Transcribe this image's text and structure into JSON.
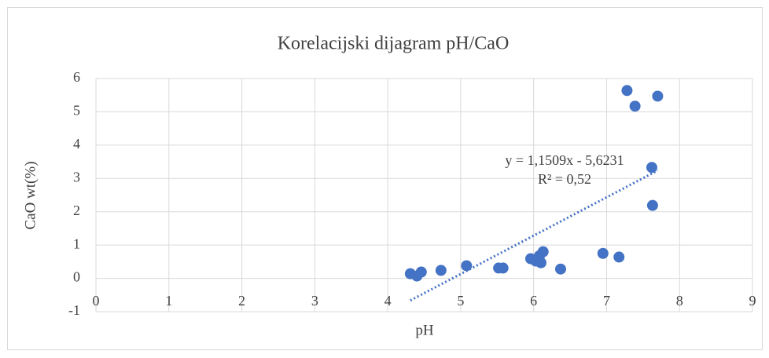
{
  "chart_data": {
    "type": "scatter",
    "title": "Korelacijski dijagram pH/CaO",
    "x_label": "pH",
    "y_label": "CaO wt(%)",
    "series": [
      {
        "name": "CaO",
        "color": "#4472c4",
        "x": [
          4.31,
          4.4,
          4.46,
          4.73,
          5.08,
          5.52,
          5.58,
          5.96,
          6.03,
          6.08,
          6.1,
          6.13,
          6.37,
          6.95,
          7.17,
          7.28,
          7.39,
          7.62,
          7.63,
          7.7
        ],
        "values": [
          0.14,
          0.07,
          0.19,
          0.24,
          0.38,
          0.31,
          0.31,
          0.59,
          0.52,
          0.68,
          0.47,
          0.8,
          0.28,
          0.75,
          0.64,
          5.64,
          5.17,
          3.33,
          2.19,
          5.47
        ]
      }
    ],
    "trendline": {
      "slope": 1.1509,
      "intercept": -5.6231,
      "color": "#4472c4",
      "equation": "y = 1,1509x - 5,6231",
      "r2": "R² = 0,52"
    },
    "xlim": [
      0,
      9
    ],
    "xticks": [
      0,
      1,
      2,
      3,
      4,
      5,
      6,
      7,
      8,
      9
    ],
    "ylim": [
      -1,
      6
    ],
    "yticks": [
      -1,
      0,
      1,
      2,
      3,
      4,
      5,
      6
    ],
    "grid": true
  }
}
